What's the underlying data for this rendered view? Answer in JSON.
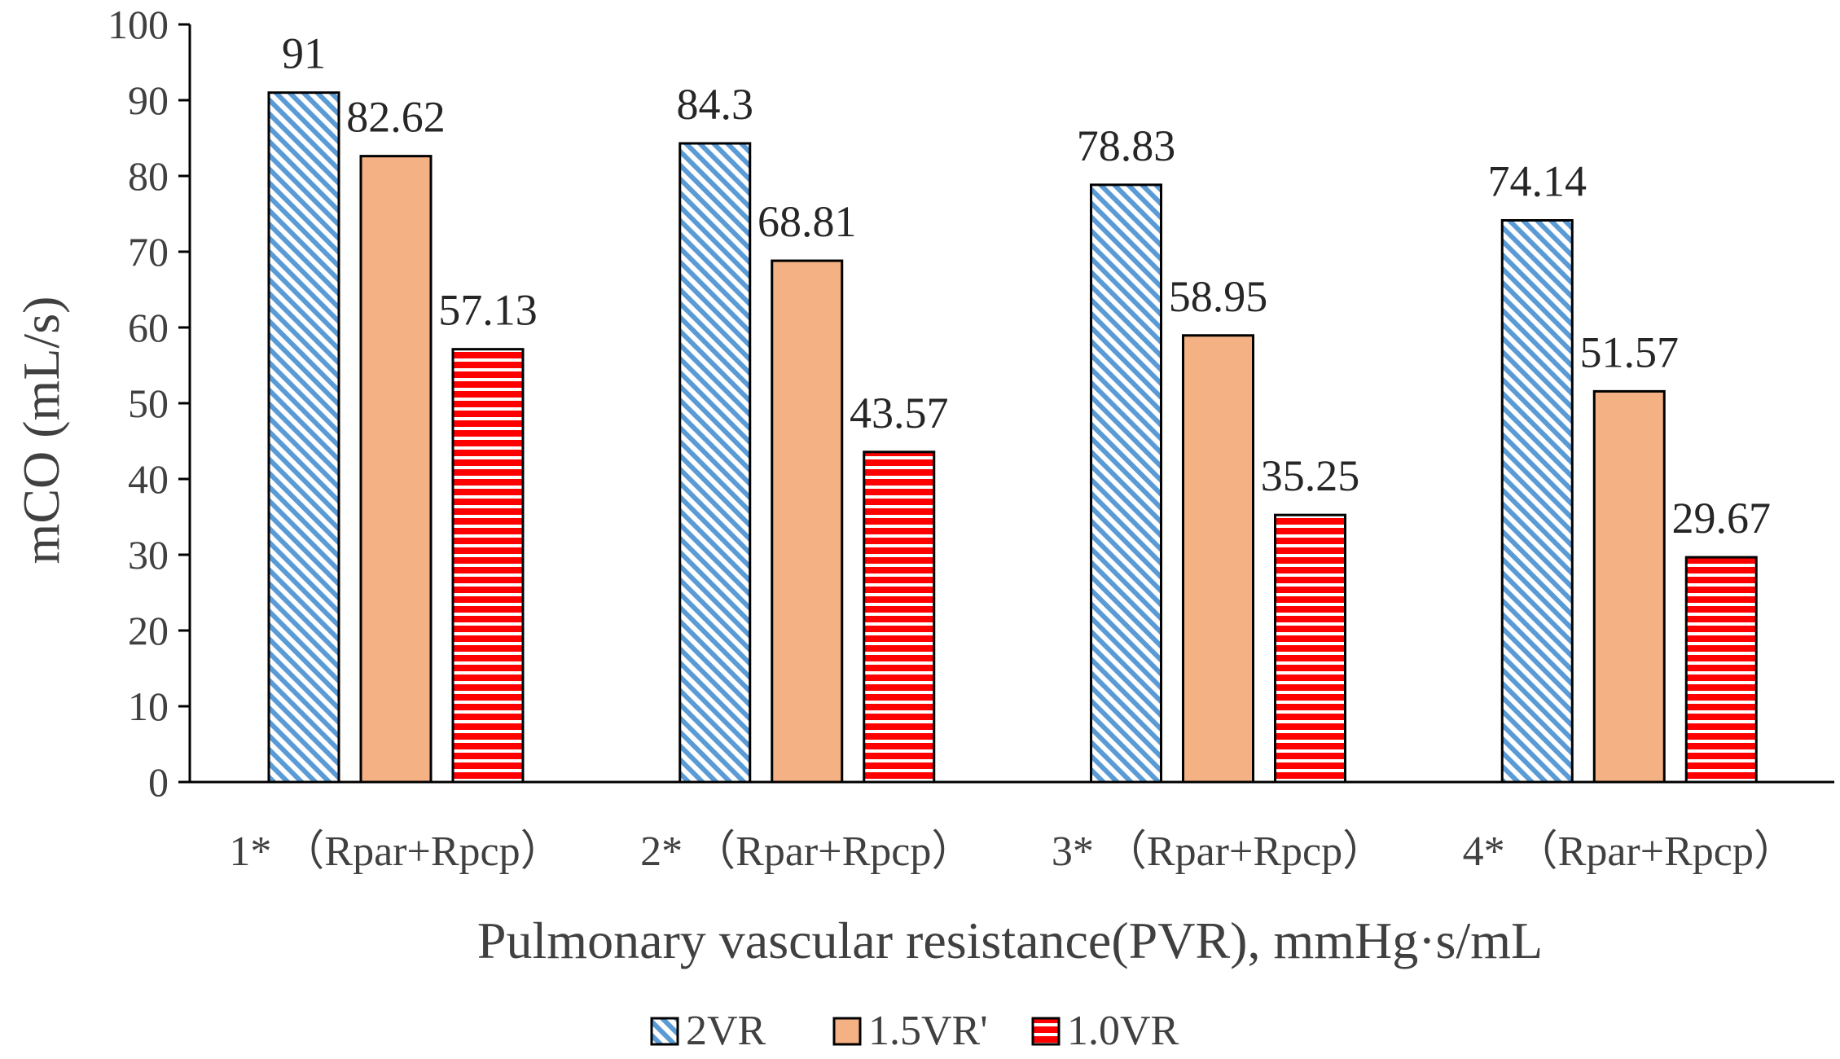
{
  "chart_data": {
    "type": "bar",
    "categories": [
      "1* （Rpar+Rpcp）",
      "2* （Rpar+Rpcp）",
      "3* （Rpar+Rpcp）",
      "4* （Rpar+Rpcp）"
    ],
    "series": [
      {
        "name": "2VR",
        "values": [
          91,
          84.3,
          78.83,
          74.14
        ],
        "labels": [
          "91",
          "84.3",
          "78.83",
          "74.14"
        ],
        "color": "#5b9bd5",
        "pattern": "diagonal-stripes"
      },
      {
        "name": "1.5VR'",
        "values": [
          82.62,
          68.81,
          58.95,
          51.57
        ],
        "labels": [
          "82.62",
          "68.81",
          "58.95",
          "51.57"
        ],
        "color": "#f4b183",
        "pattern": "solid"
      },
      {
        "name": "1.0VR",
        "values": [
          57.13,
          43.57,
          35.25,
          29.67
        ],
        "labels": [
          "57.13",
          "43.57",
          "35.25",
          "29.67"
        ],
        "color": "#ff0000",
        "pattern": "horizontal-stripes"
      }
    ],
    "title": "",
    "xlabel": "Pulmonary vascular resistance(PVR),  mmHg·s/mL",
    "ylabel": "mCO (mL/s)",
    "ylim": [
      0,
      100
    ],
    "yticks": [
      "0",
      "10",
      "20",
      "30",
      "40",
      "50",
      "60",
      "70",
      "80",
      "90",
      "100"
    ],
    "grid": false,
    "legend_position": "bottom-center"
  }
}
